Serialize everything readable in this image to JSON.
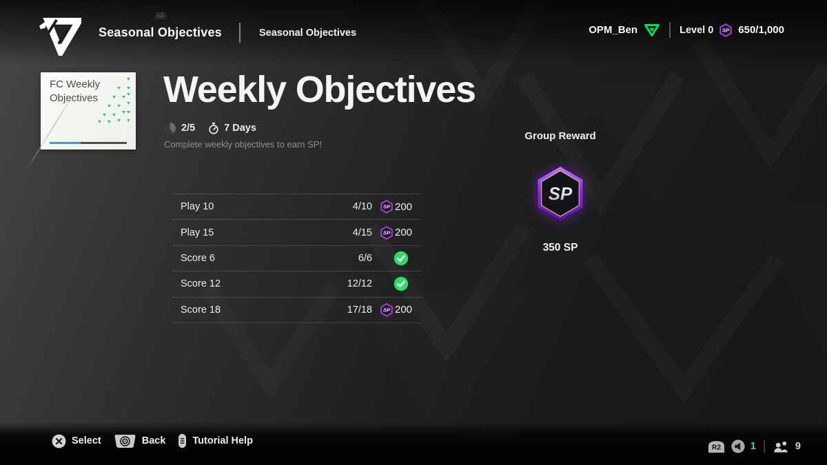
{
  "header": {
    "title": "Seasonal Objectives",
    "breadcrumb": "Seasonal Objectives",
    "l2": "L2",
    "username": "OPM_Ben",
    "level": "Level 0",
    "sp_balance": "650/1,000"
  },
  "playlist_card": {
    "title": "FC Weekly Objectives",
    "progress_pct": 40
  },
  "main": {
    "title": "Weekly Objectives",
    "group_progress": "2/5",
    "time_remaining": "7 Days",
    "description": "Complete weekly objectives to earn SP!",
    "objectives": [
      {
        "label": "Play 10",
        "progress": "4/10",
        "reward": "200",
        "completed": false
      },
      {
        "label": "Play 15",
        "progress": "4/15",
        "reward": "200",
        "completed": false
      },
      {
        "label": "Score 6",
        "progress": "6/6",
        "reward": "",
        "completed": true
      },
      {
        "label": "Score 12",
        "progress": "12/12",
        "reward": "",
        "completed": true
      },
      {
        "label": "Score 18",
        "progress": "17/18",
        "reward": "200",
        "completed": false
      }
    ]
  },
  "group_reward": {
    "title": "Group Reward",
    "amount": "350 SP"
  },
  "sp_icon_label": "SP",
  "footer": {
    "select_label": "Select",
    "back_label": "Back",
    "tutorial_label": "Tutorial Help",
    "r2": "R2",
    "voice_chat_count": "1",
    "online_count": "9"
  },
  "colors": {
    "accent_purple": "#9b3be0",
    "accent_green": "#2ade68",
    "profile_green": "#00df63",
    "progress_blue": "#3d9bd1"
  }
}
